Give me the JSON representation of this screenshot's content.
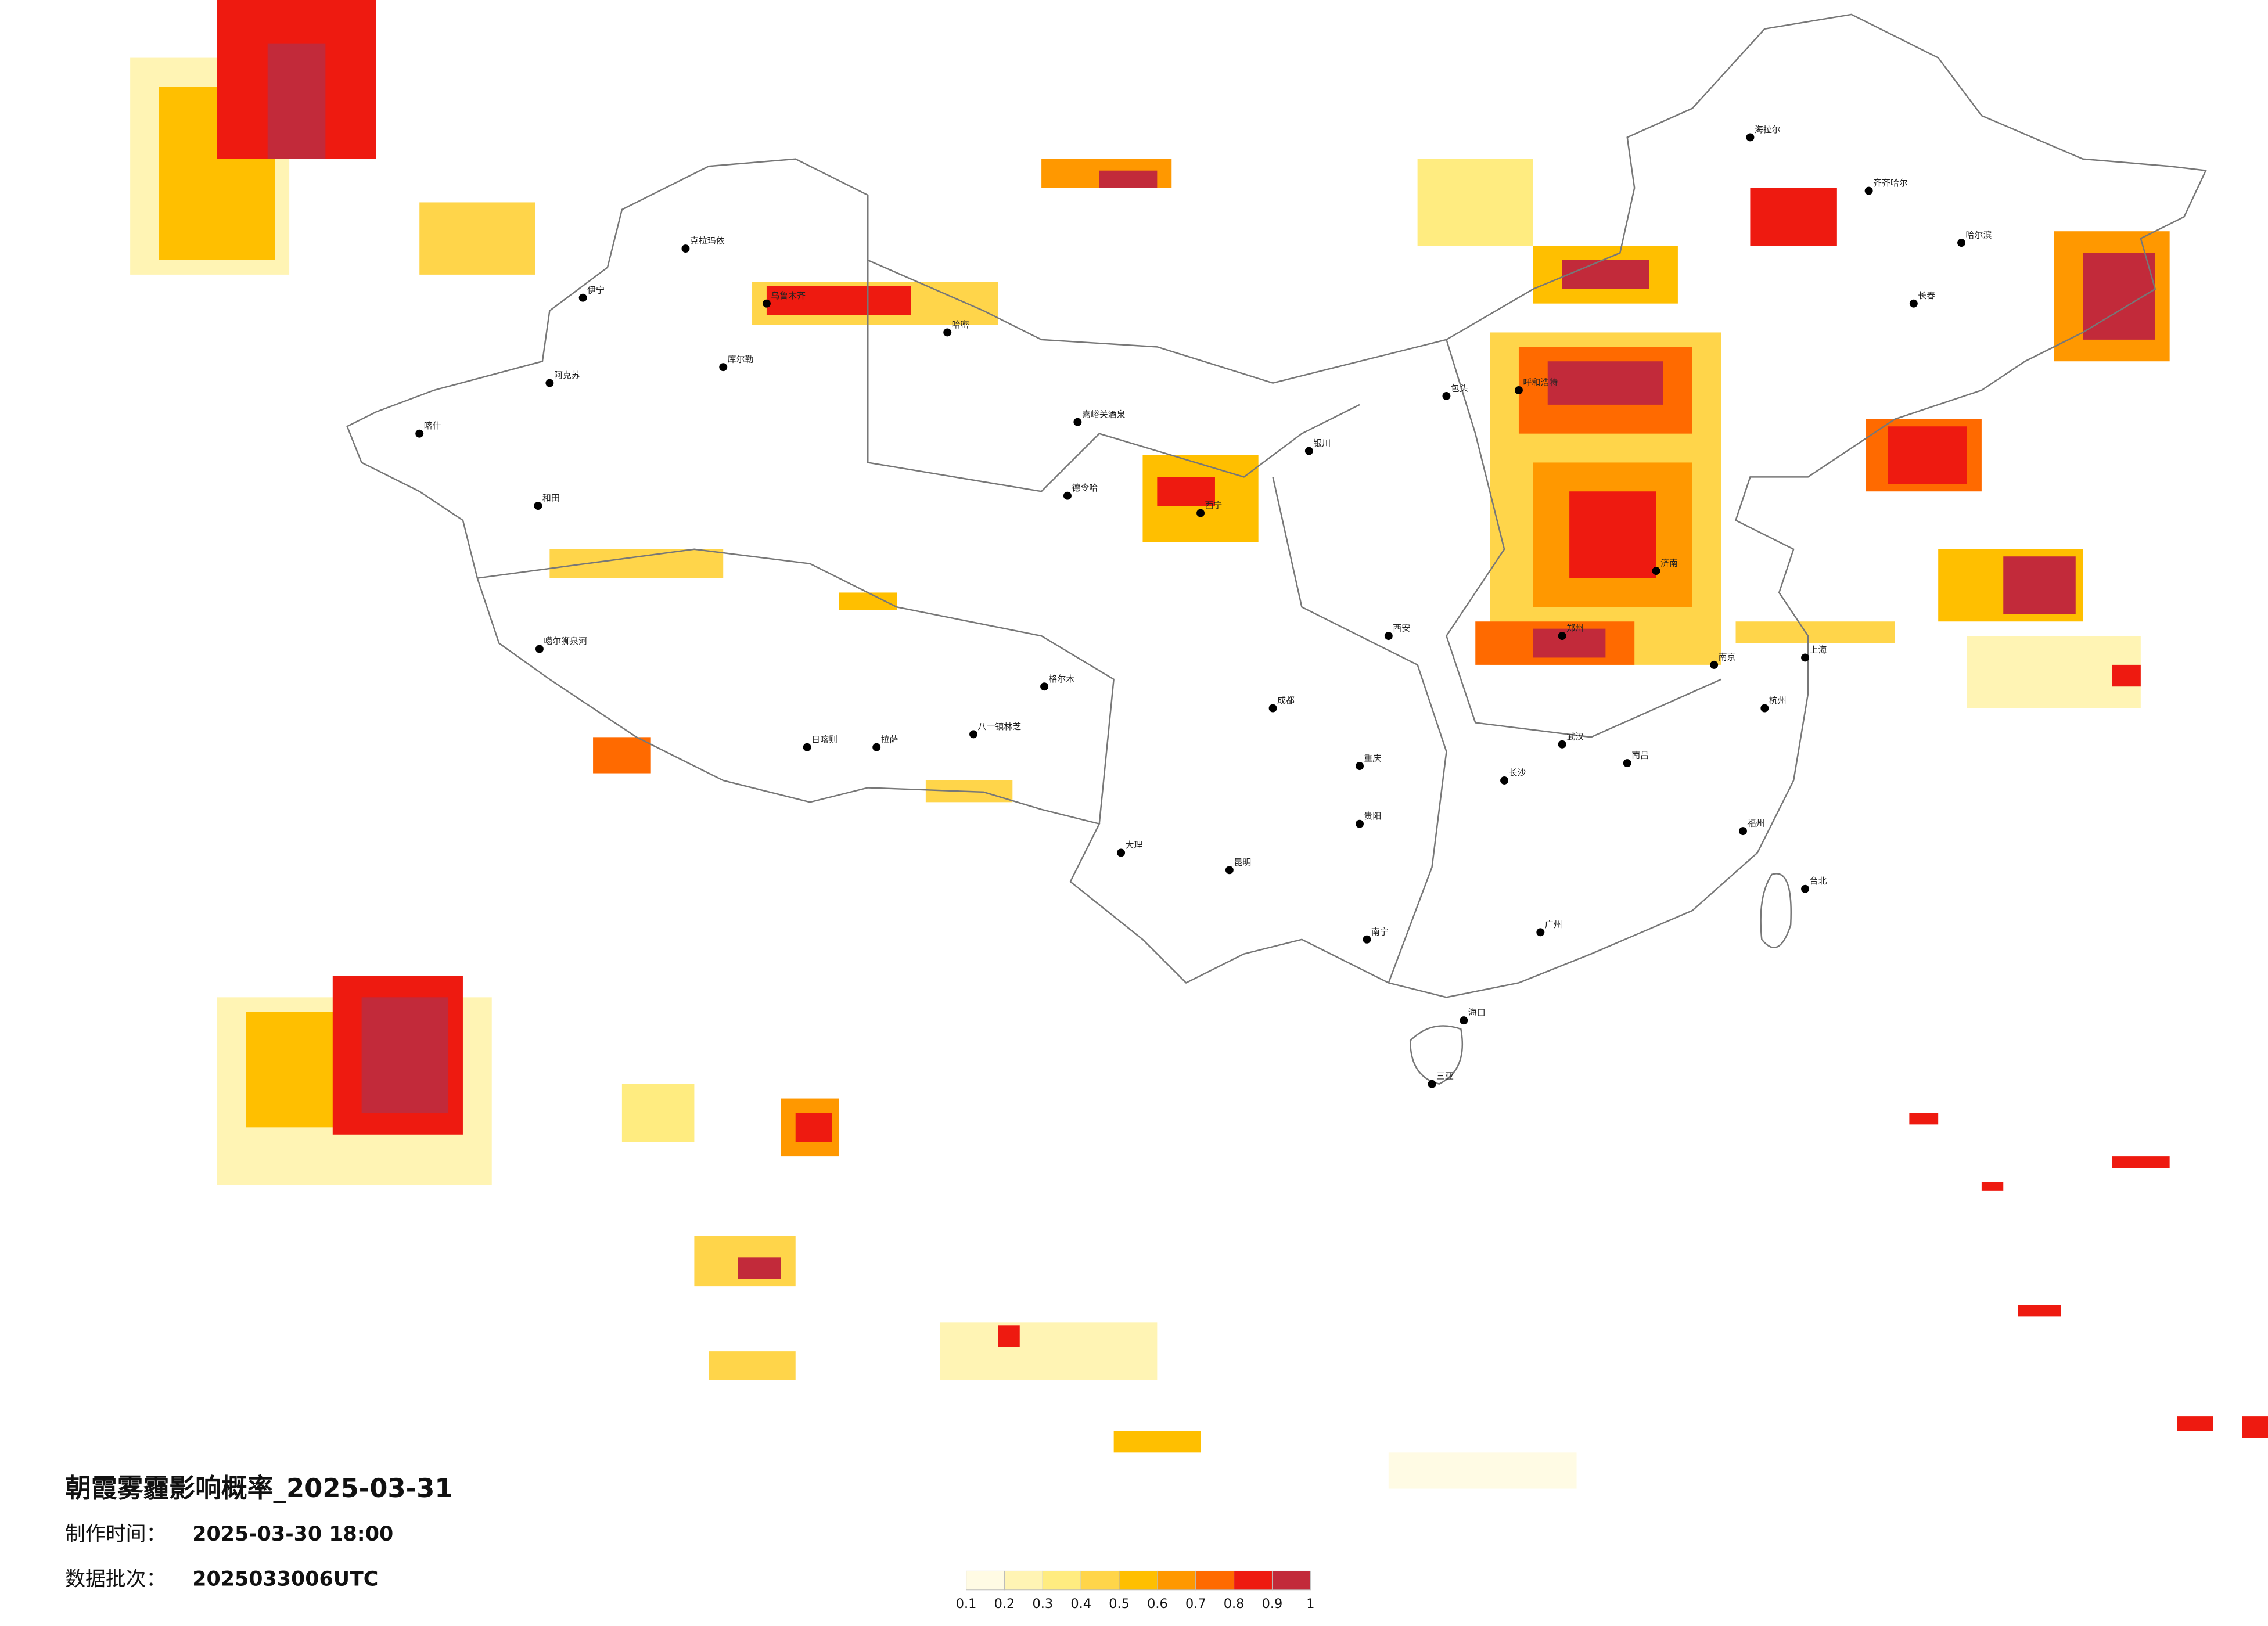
{
  "title": "朝霞雾霾影响概率_2025-03-31",
  "made_label": "制作时间：",
  "made_time": "2025-03-30 18:00",
  "batch_label": "数据批次：",
  "batch": "2025033006UTC",
  "legend": {
    "ticks": [
      0.1,
      0.2,
      0.3,
      0.4,
      0.5,
      0.6,
      0.7,
      0.8,
      0.9,
      1
    ],
    "colors": [
      "#fffbe4",
      "#fff4b4",
      "#ffec80",
      "#ffd54a",
      "#ffbf00",
      "#ff9800",
      "#ff6a00",
      "#ee1a10",
      "#c22a3a"
    ]
  },
  "cities": [
    "克拉玛依",
    "伊宁",
    "阿克苏",
    "喀什",
    "和田",
    "库尔勒",
    "乌鲁木齐",
    "哈密",
    "嘉峪关酒泉",
    "德令哈",
    "噶尔狮泉河",
    "日喀则",
    "拉萨",
    "八一镇林芝",
    "格尔木",
    "海拉尔",
    "齐齐哈尔",
    "哈尔滨",
    "长春",
    "呼和浩特",
    "包头",
    "银川",
    "西宁",
    "西安",
    "成都",
    "重庆",
    "昆明",
    "贵阳",
    "大理",
    "南宁",
    "海口",
    "三亚",
    "武汉",
    "长沙",
    "南昌",
    "福州",
    "杭州",
    "上海",
    "南京",
    "台北",
    "郑州",
    "济南",
    "广州"
  ]
}
